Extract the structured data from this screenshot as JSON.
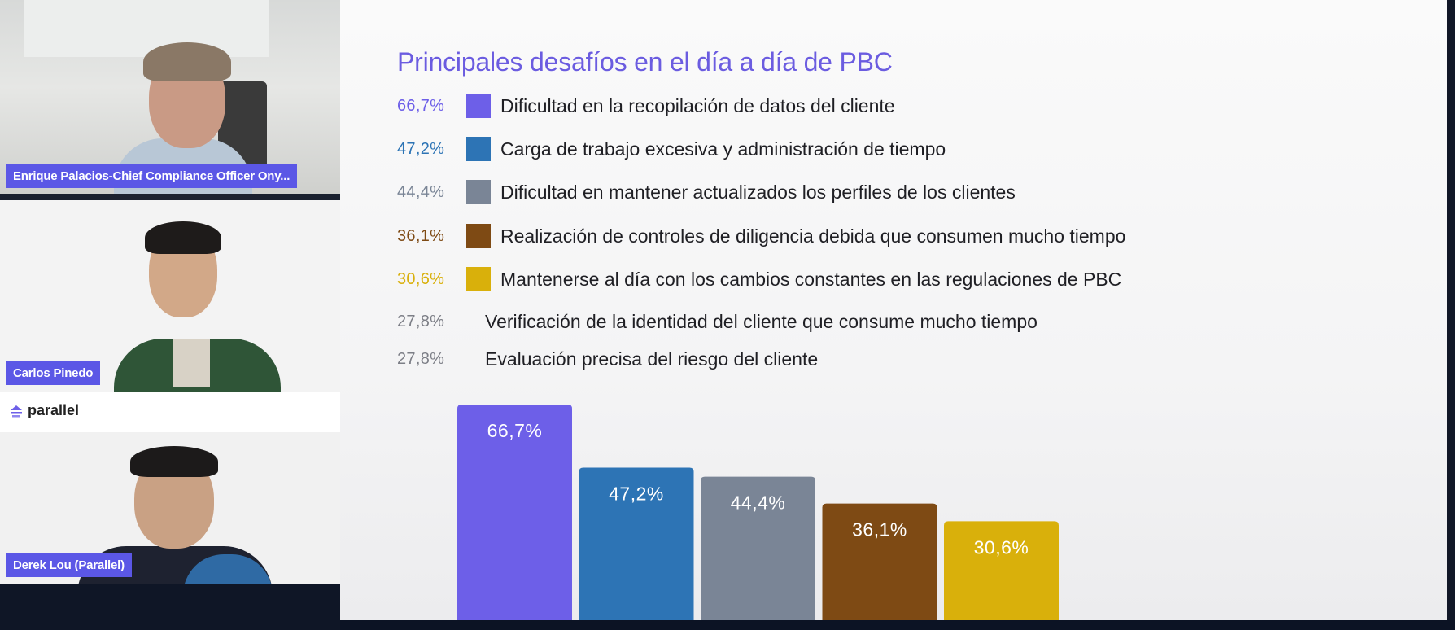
{
  "participants": [
    {
      "name": "Enrique Palacios-Chief Compliance Officer Ony..."
    },
    {
      "name": "Carlos Pinedo"
    },
    {
      "name": "Derek Lou (Parallel)"
    }
  ],
  "brand": {
    "logo_text": "parallel",
    "logo_icon": "parallel-logo-icon",
    "accent": "#5b57e6"
  },
  "slide": {
    "title": "Principales desafíos en el día a día de PBC",
    "title_color": "#6b5ce0"
  },
  "chart_data": {
    "type": "bar",
    "title": "Principales desafíos en el día a día de PBC",
    "categories": [
      "Dificultad en la recopilación de datos del cliente",
      "Carga de trabajo excesiva y administración de tiempo",
      "Dificultad en mantener actualizados los perfiles de los clientes",
      "Realización de controles de diligencia debida que consumen mucho tiempo",
      "Mantenerse al día con los cambios constantes en las regulaciones de PBC",
      "Verificación de la identidad del cliente que consume mucho tiempo",
      "Evaluación precisa del riesgo del cliente"
    ],
    "values": [
      66.7,
      47.2,
      44.4,
      36.1,
      30.6,
      27.8,
      27.8
    ],
    "value_labels": [
      "66,7%",
      "47,2%",
      "44,4%",
      "36,1%",
      "30,6%",
      "27,8%",
      "27,8%"
    ],
    "colors": [
      "#6d5fe8",
      "#2d74b5",
      "#7a8596",
      "#7e4a14",
      "#d9b00b",
      null,
      null
    ],
    "bars_shown": 5,
    "unit": "%"
  }
}
